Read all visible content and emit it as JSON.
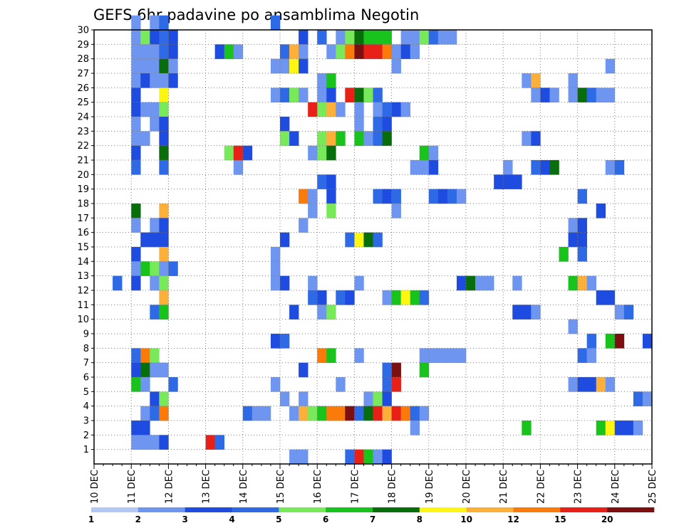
{
  "chart_data": {
    "type": "heatmap",
    "title": "GEFS 6hr padavine po ansamblima Negotin",
    "xlabel": "",
    "ylabel": "",
    "x_tick_labels": [
      "10 DEC",
      "11 DEC",
      "12 DEC",
      "13 DEC",
      "14 DEC",
      "15 DEC",
      "16 DEC",
      "17 DEC",
      "18 DEC",
      "19 DEC",
      "20 DEC",
      "21 DEC",
      "22 DEC",
      "23 DEC",
      "24 DEC",
      "25 DEC"
    ],
    "y_tick_labels": [
      "1",
      "2",
      "3",
      "4",
      "5",
      "6",
      "7",
      "8",
      "9",
      "10",
      "11",
      "12",
      "13",
      "14",
      "15",
      "16",
      "17",
      "18",
      "19",
      "20",
      "21",
      "22",
      "23",
      "24",
      "25",
      "26",
      "27",
      "28",
      "29",
      "30"
    ],
    "xlim": [
      "10 DEC",
      "25 DEC"
    ],
    "ylim": [
      0,
      30
    ],
    "grid": true,
    "time_step_hours": 6,
    "colorbar": {
      "labels": [
        "1",
        "2",
        "3",
        "4",
        "5",
        "6",
        "7",
        "8",
        "10",
        "12",
        "15",
        "20"
      ],
      "colors": [
        "#b4c8f4",
        "#6e96f0",
        "#1e4ce0",
        "#2e6ae6",
        "#78ea5a",
        "#18c31c",
        "#086e0c",
        "#fcf612",
        "#fcb03a",
        "#fa7a0a",
        "#e82018",
        "#7c1010"
      ]
    },
    "cells": [
      [
        29,
        1.0,
        1
      ],
      [
        29,
        1.25,
        4
      ],
      [
        29,
        1.5,
        2
      ],
      [
        29,
        1.75,
        3
      ],
      [
        29,
        2.0,
        2
      ],
      [
        28,
        1.0,
        1
      ],
      [
        28,
        1.25,
        1
      ],
      [
        28,
        1.5,
        1
      ],
      [
        28,
        1.75,
        3
      ],
      [
        28,
        2.0,
        2
      ],
      [
        27,
        1.0,
        1
      ],
      [
        27,
        1.25,
        1
      ],
      [
        27,
        1.5,
        1
      ],
      [
        27,
        1.75,
        6
      ],
      [
        27,
        2.0,
        1
      ],
      [
        26,
        1.0,
        1
      ],
      [
        26,
        1.25,
        2
      ],
      [
        26,
        1.5,
        1
      ],
      [
        26,
        1.75,
        1
      ],
      [
        26,
        2.0,
        2
      ],
      [
        25,
        1.0,
        2
      ],
      [
        25,
        1.75,
        7
      ],
      [
        24,
        1.0,
        2
      ],
      [
        24,
        1.25,
        1
      ],
      [
        24,
        1.5,
        1
      ],
      [
        24,
        1.75,
        4
      ],
      [
        23,
        1.0,
        1
      ],
      [
        23,
        1.5,
        1
      ],
      [
        23,
        1.75,
        2
      ],
      [
        22,
        1.0,
        1
      ],
      [
        22,
        1.25,
        1
      ],
      [
        22,
        1.75,
        2
      ],
      [
        21,
        1.0,
        2
      ],
      [
        21,
        1.75,
        6
      ],
      [
        20,
        1.0,
        3
      ],
      [
        20,
        1.75,
        3
      ],
      [
        17,
        1.0,
        6
      ],
      [
        17,
        1.75,
        8
      ],
      [
        16,
        1.0,
        1
      ],
      [
        16,
        1.5,
        1
      ],
      [
        16,
        1.75,
        2
      ],
      [
        15,
        1.25,
        2
      ],
      [
        15,
        1.5,
        2
      ],
      [
        15,
        1.75,
        2
      ],
      [
        14,
        1.0,
        2
      ],
      [
        14,
        1.75,
        8
      ],
      [
        13,
        1.0,
        1
      ],
      [
        13,
        1.25,
        5
      ],
      [
        13,
        1.5,
        4
      ],
      [
        13,
        1.75,
        1
      ],
      [
        13,
        2.0,
        3
      ],
      [
        12,
        0.5,
        3
      ],
      [
        12,
        1.0,
        2
      ],
      [
        12,
        1.5,
        1
      ],
      [
        12,
        1.75,
        4
      ],
      [
        11,
        1.75,
        8
      ],
      [
        10,
        1.5,
        3
      ],
      [
        10,
        1.75,
        5
      ],
      [
        7,
        1.0,
        3
      ],
      [
        7,
        1.25,
        9
      ],
      [
        7,
        1.5,
        4
      ],
      [
        6,
        1.0,
        2
      ],
      [
        6,
        1.25,
        6
      ],
      [
        6,
        1.5,
        1
      ],
      [
        6,
        1.75,
        1
      ],
      [
        5,
        1.0,
        5
      ],
      [
        5,
        1.25,
        1
      ],
      [
        5,
        2.0,
        3
      ],
      [
        4,
        1.5,
        2
      ],
      [
        4,
        1.75,
        4
      ],
      [
        3,
        1.25,
        1
      ],
      [
        3,
        1.5,
        3
      ],
      [
        3,
        1.75,
        9
      ],
      [
        2,
        1.0,
        2
      ],
      [
        2,
        1.25,
        2
      ],
      [
        1,
        1.0,
        1
      ],
      [
        1,
        1.25,
        1
      ],
      [
        1,
        1.5,
        1
      ],
      [
        1,
        1.75,
        2
      ],
      [
        30,
        1.0,
        1
      ],
      [
        30,
        1.5,
        1
      ],
      [
        30,
        1.75,
        3
      ],
      [
        1,
        3.0,
        10
      ],
      [
        1,
        3.25,
        3
      ],
      [
        3,
        4.0,
        3
      ],
      [
        3,
        4.25,
        1
      ],
      [
        3,
        4.5,
        1
      ],
      [
        20,
        3.75,
        1
      ],
      [
        21,
        3.5,
        4
      ],
      [
        21,
        3.75,
        10
      ],
      [
        21,
        4.0,
        2
      ],
      [
        28,
        3.25,
        2
      ],
      [
        28,
        3.5,
        5
      ],
      [
        28,
        3.75,
        1
      ],
      [
        30,
        4.75,
        3
      ],
      [
        29,
        5.5,
        2
      ],
      [
        29,
        6.0,
        3
      ],
      [
        29,
        6.5,
        1
      ],
      [
        29,
        6.75,
        4
      ],
      [
        29,
        7.0,
        6
      ],
      [
        29,
        7.25,
        5
      ],
      [
        29,
        7.5,
        5
      ],
      [
        29,
        7.75,
        5
      ],
      [
        29,
        8.25,
        1
      ],
      [
        29,
        8.5,
        1
      ],
      [
        29,
        8.75,
        4
      ],
      [
        29,
        9.0,
        3
      ],
      [
        29,
        9.25,
        1
      ],
      [
        29,
        9.5,
        1
      ],
      [
        28,
        5.0,
        3
      ],
      [
        28,
        5.25,
        8
      ],
      [
        28,
        5.5,
        1
      ],
      [
        28,
        6.25,
        1
      ],
      [
        28,
        6.5,
        4
      ],
      [
        28,
        6.75,
        9
      ],
      [
        28,
        7.0,
        11
      ],
      [
        28,
        7.25,
        10
      ],
      [
        28,
        7.5,
        10
      ],
      [
        28,
        7.75,
        9
      ],
      [
        28,
        8.0,
        1
      ],
      [
        28,
        8.25,
        2
      ],
      [
        28,
        8.5,
        1
      ],
      [
        27,
        4.75,
        1
      ],
      [
        27,
        5.0,
        1
      ],
      [
        27,
        5.25,
        7
      ],
      [
        27,
        5.5,
        2
      ],
      [
        27,
        8.0,
        1
      ],
      [
        26,
        6.0,
        1
      ],
      [
        26,
        6.25,
        5
      ],
      [
        25,
        4.75,
        1
      ],
      [
        25,
        5.0,
        3
      ],
      [
        25,
        5.25,
        4
      ],
      [
        25,
        5.5,
        1
      ],
      [
        25,
        6.0,
        1
      ],
      [
        25,
        6.25,
        2
      ],
      [
        25,
        6.75,
        10
      ],
      [
        25,
        7.0,
        6
      ],
      [
        25,
        7.25,
        4
      ],
      [
        25,
        7.5,
        3
      ],
      [
        24,
        5.75,
        10
      ],
      [
        24,
        6.0,
        4
      ],
      [
        24,
        6.25,
        8
      ],
      [
        24,
        6.5,
        1
      ],
      [
        24,
        7.0,
        1
      ],
      [
        24,
        7.5,
        1
      ],
      [
        24,
        7.75,
        3
      ],
      [
        24,
        8.0,
        2
      ],
      [
        24,
        8.25,
        1
      ],
      [
        23,
        5.0,
        2
      ],
      [
        23,
        7.0,
        1
      ],
      [
        23,
        7.5,
        3
      ],
      [
        23,
        7.75,
        2
      ],
      [
        22,
        5.0,
        4
      ],
      [
        22,
        5.25,
        2
      ],
      [
        22,
        6.0,
        4
      ],
      [
        22,
        6.25,
        8
      ],
      [
        22,
        6.5,
        5
      ],
      [
        22,
        7.0,
        5
      ],
      [
        22,
        7.25,
        1
      ],
      [
        22,
        7.5,
        3
      ],
      [
        22,
        7.75,
        6
      ],
      [
        21,
        5.75,
        1
      ],
      [
        21,
        6.0,
        4
      ],
      [
        21,
        6.25,
        6
      ],
      [
        21,
        8.75,
        5
      ],
      [
        21,
        9.0,
        1
      ],
      [
        20,
        8.5,
        1
      ],
      [
        20,
        8.75,
        1
      ],
      [
        20,
        9.0,
        2
      ],
      [
        19,
        6.0,
        3
      ],
      [
        19,
        6.25,
        2
      ],
      [
        18,
        5.5,
        9
      ],
      [
        18,
        5.75,
        1
      ],
      [
        18,
        6.25,
        2
      ],
      [
        18,
        7.5,
        3
      ],
      [
        18,
        7.75,
        2
      ],
      [
        18,
        8.0,
        3
      ],
      [
        18,
        9.0,
        3
      ],
      [
        18,
        9.25,
        2
      ],
      [
        18,
        9.5,
        3
      ],
      [
        18,
        9.75,
        1
      ],
      [
        17,
        5.75,
        1
      ],
      [
        17,
        6.25,
        4
      ],
      [
        17,
        8.0,
        1
      ],
      [
        16,
        5.5,
        1
      ],
      [
        15,
        5.0,
        2
      ],
      [
        15,
        6.75,
        3
      ],
      [
        15,
        7.0,
        7
      ],
      [
        15,
        7.25,
        6
      ],
      [
        15,
        7.5,
        3
      ],
      [
        14,
        4.75,
        1
      ],
      [
        13,
        4.75,
        1
      ],
      [
        12,
        4.75,
        1
      ],
      [
        12,
        5.0,
        2
      ],
      [
        12,
        5.75,
        1
      ],
      [
        12,
        7.0,
        1
      ],
      [
        12,
        9.75,
        2
      ],
      [
        12,
        10.0,
        6
      ],
      [
        12,
        10.25,
        1
      ],
      [
        12,
        10.5,
        1
      ],
      [
        11,
        5.75,
        3
      ],
      [
        11,
        6.0,
        2
      ],
      [
        11,
        6.5,
        3
      ],
      [
        11,
        6.75,
        2
      ],
      [
        11,
        7.75,
        1
      ],
      [
        11,
        8.0,
        5
      ],
      [
        11,
        8.25,
        7
      ],
      [
        11,
        8.5,
        5
      ],
      [
        11,
        8.75,
        3
      ],
      [
        10,
        5.25,
        2
      ],
      [
        10,
        6.0,
        1
      ],
      [
        10,
        6.25,
        4
      ],
      [
        8,
        4.75,
        2
      ],
      [
        8,
        5.0,
        3
      ],
      [
        7,
        6.0,
        9
      ],
      [
        7,
        6.25,
        5
      ],
      [
        7,
        7.0,
        1
      ],
      [
        7,
        8.75,
        1
      ],
      [
        7,
        9.0,
        1
      ],
      [
        7,
        9.25,
        1
      ],
      [
        7,
        9.5,
        1
      ],
      [
        7,
        9.75,
        1
      ],
      [
        6,
        5.5,
        2
      ],
      [
        6,
        7.75,
        3
      ],
      [
        6,
        8.0,
        11
      ],
      [
        6,
        8.75,
        5
      ],
      [
        5,
        4.75,
        1
      ],
      [
        5,
        6.5,
        1
      ],
      [
        5,
        7.75,
        3
      ],
      [
        5,
        8.0,
        10
      ],
      [
        4,
        5.0,
        1
      ],
      [
        4,
        5.5,
        1
      ],
      [
        4,
        7.25,
        1
      ],
      [
        4,
        7.5,
        4
      ],
      [
        4,
        7.75,
        2
      ],
      [
        3,
        5.25,
        1
      ],
      [
        3,
        5.5,
        8
      ],
      [
        3,
        5.75,
        4
      ],
      [
        3,
        6.0,
        5
      ],
      [
        3,
        6.25,
        9
      ],
      [
        3,
        6.5,
        9
      ],
      [
        3,
        6.75,
        11
      ],
      [
        3,
        7.0,
        3
      ],
      [
        3,
        7.25,
        6
      ],
      [
        3,
        7.5,
        10
      ],
      [
        3,
        7.75,
        8
      ],
      [
        3,
        8.0,
        10
      ],
      [
        3,
        8.25,
        9
      ],
      [
        3,
        8.5,
        3
      ],
      [
        3,
        8.75,
        1
      ],
      [
        2,
        8.5,
        1
      ],
      [
        0,
        5.25,
        1
      ],
      [
        0,
        5.5,
        1
      ],
      [
        0,
        6.75,
        3
      ],
      [
        0,
        7.0,
        10
      ],
      [
        0,
        7.25,
        5
      ],
      [
        0,
        7.5,
        1
      ],
      [
        0,
        7.75,
        2
      ],
      [
        26,
        11.5,
        1
      ],
      [
        26,
        11.75,
        8
      ],
      [
        26,
        12.75,
        1
      ],
      [
        25,
        11.75,
        1
      ],
      [
        25,
        12.0,
        2
      ],
      [
        25,
        12.25,
        1
      ],
      [
        25,
        12.75,
        1
      ],
      [
        25,
        13.0,
        6
      ],
      [
        25,
        13.25,
        3
      ],
      [
        25,
        13.5,
        1
      ],
      [
        25,
        13.75,
        1
      ],
      [
        27,
        13.75,
        1
      ],
      [
        22,
        11.5,
        1
      ],
      [
        22,
        11.75,
        2
      ],
      [
        20,
        11.0,
        1
      ],
      [
        20,
        11.75,
        3
      ],
      [
        20,
        12.0,
        2
      ],
      [
        20,
        12.25,
        6
      ],
      [
        20,
        13.75,
        1
      ],
      [
        20,
        14.0,
        3
      ],
      [
        19,
        10.75,
        2
      ],
      [
        19,
        11.0,
        2
      ],
      [
        19,
        11.25,
        2
      ],
      [
        18,
        13.0,
        3
      ],
      [
        17,
        13.5,
        2
      ],
      [
        16,
        12.75,
        1
      ],
      [
        16,
        13.0,
        2
      ],
      [
        15,
        12.75,
        2
      ],
      [
        15,
        13.0,
        2
      ],
      [
        14,
        12.5,
        5
      ],
      [
        14,
        13.0,
        3
      ],
      [
        12,
        11.25,
        1
      ],
      [
        12,
        12.75,
        5
      ],
      [
        12,
        13.0,
        8
      ],
      [
        12,
        13.25,
        1
      ],
      [
        11,
        13.5,
        2
      ],
      [
        11,
        13.75,
        2
      ],
      [
        10,
        11.25,
        2
      ],
      [
        10,
        11.5,
        2
      ],
      [
        10,
        11.75,
        1
      ],
      [
        10,
        14.0,
        1
      ],
      [
        10,
        14.25,
        3
      ],
      [
        9,
        12.75,
        1
      ],
      [
        8,
        13.25,
        3
      ],
      [
        8,
        13.75,
        5
      ],
      [
        8,
        14.0,
        11
      ],
      [
        8,
        14.75,
        2
      ],
      [
        7,
        13.0,
        3
      ],
      [
        7,
        13.25,
        1
      ],
      [
        5,
        12.75,
        1
      ],
      [
        5,
        13.0,
        2
      ],
      [
        5,
        13.25,
        2
      ],
      [
        5,
        13.5,
        8
      ],
      [
        5,
        13.75,
        1
      ],
      [
        4,
        14.5,
        3
      ],
      [
        4,
        14.75,
        1
      ],
      [
        2,
        11.5,
        5
      ],
      [
        2,
        13.5,
        5
      ],
      [
        2,
        13.75,
        7
      ],
      [
        2,
        14.0,
        2
      ],
      [
        2,
        14.25,
        2
      ],
      [
        2,
        14.5,
        1
      ]
    ]
  }
}
